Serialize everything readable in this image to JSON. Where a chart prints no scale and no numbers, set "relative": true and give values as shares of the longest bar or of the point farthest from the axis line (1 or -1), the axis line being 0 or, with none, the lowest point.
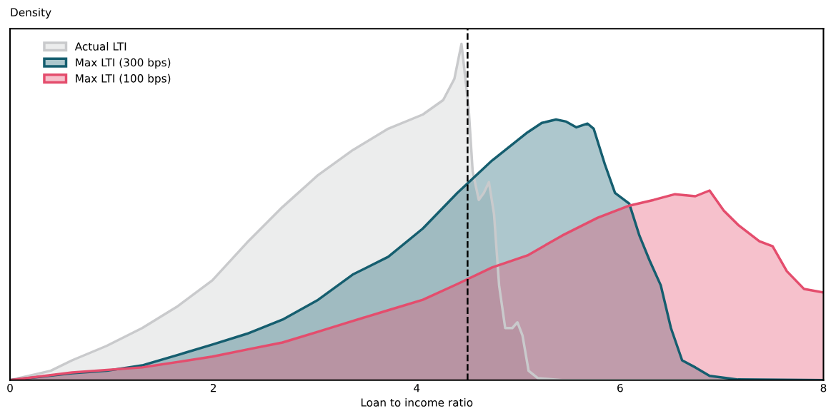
{
  "chart_data": {
    "type": "area",
    "relative": true,
    "ylabel": "Density",
    "xlabel": "Loan to income ratio",
    "xlim": [
      0,
      8
    ],
    "xticks": [
      0,
      2,
      4,
      6,
      8
    ],
    "grid": false,
    "legend": "top left",
    "series": [
      {
        "name": "Actual LTI",
        "color": "#c9cacc",
        "x": [
          0,
          0.4,
          0.61,
          0.95,
          1.3,
          1.64,
          1.99,
          2.33,
          2.68,
          3.03,
          3.37,
          3.72,
          4.06,
          4.26,
          4.37,
          4.44,
          4.51,
          4.55,
          4.61,
          4.66,
          4.71,
          4.76,
          4.81,
          4.87,
          4.94,
          4.99,
          5.04,
          5.1,
          5.19,
          5.43,
          8
        ],
        "values": [
          0,
          0.028,
          0.059,
          0.102,
          0.155,
          0.218,
          0.297,
          0.409,
          0.515,
          0.61,
          0.684,
          0.748,
          0.79,
          0.833,
          0.896,
          1,
          0.811,
          0.621,
          0.536,
          0.557,
          0.589,
          0.494,
          0.282,
          0.155,
          0.155,
          0.172,
          0.133,
          0.028,
          0.006,
          0,
          0
        ]
      },
      {
        "name": "Max LTI (300 bps)",
        "color": "#155e6f",
        "x": [
          0,
          0.61,
          0.95,
          1.3,
          1.64,
          1.99,
          2.33,
          2.68,
          3.03,
          3.37,
          3.72,
          4.06,
          4.4,
          4.74,
          5.09,
          5.23,
          5.37,
          5.47,
          5.57,
          5.68,
          5.74,
          5.85,
          5.95,
          6.09,
          6.19,
          6.29,
          6.4,
          6.5,
          6.61,
          6.74,
          6.88,
          7.16,
          8
        ],
        "values": [
          0,
          0.021,
          0.028,
          0.044,
          0.074,
          0.106,
          0.138,
          0.18,
          0.239,
          0.314,
          0.367,
          0.451,
          0.557,
          0.653,
          0.737,
          0.765,
          0.775,
          0.769,
          0.752,
          0.763,
          0.748,
          0.642,
          0.557,
          0.525,
          0.43,
          0.356,
          0.282,
          0.155,
          0.059,
          0.038,
          0.013,
          0.002,
          0
        ]
      },
      {
        "name": "Max LTI (100 bps)",
        "color": "#e44d6d",
        "x": [
          0,
          0.61,
          1.3,
          1.99,
          2.33,
          2.68,
          3.03,
          3.37,
          3.72,
          4.06,
          4.4,
          4.74,
          5.09,
          5.43,
          5.78,
          6.09,
          6.33,
          6.54,
          6.74,
          6.88,
          7.02,
          7.16,
          7.37,
          7.5,
          7.64,
          7.81,
          8
        ],
        "values": [
          0,
          0.023,
          0.038,
          0.07,
          0.091,
          0.112,
          0.144,
          0.176,
          0.208,
          0.239,
          0.286,
          0.335,
          0.371,
          0.43,
          0.483,
          0.519,
          0.536,
          0.553,
          0.547,
          0.564,
          0.504,
          0.462,
          0.413,
          0.398,
          0.324,
          0.271,
          0.261
        ]
      }
    ],
    "ref_lines": [
      {
        "axis": "x",
        "value": 4.5,
        "label": null,
        "color": "#000000",
        "line_style": "dashed"
      }
    ]
  }
}
